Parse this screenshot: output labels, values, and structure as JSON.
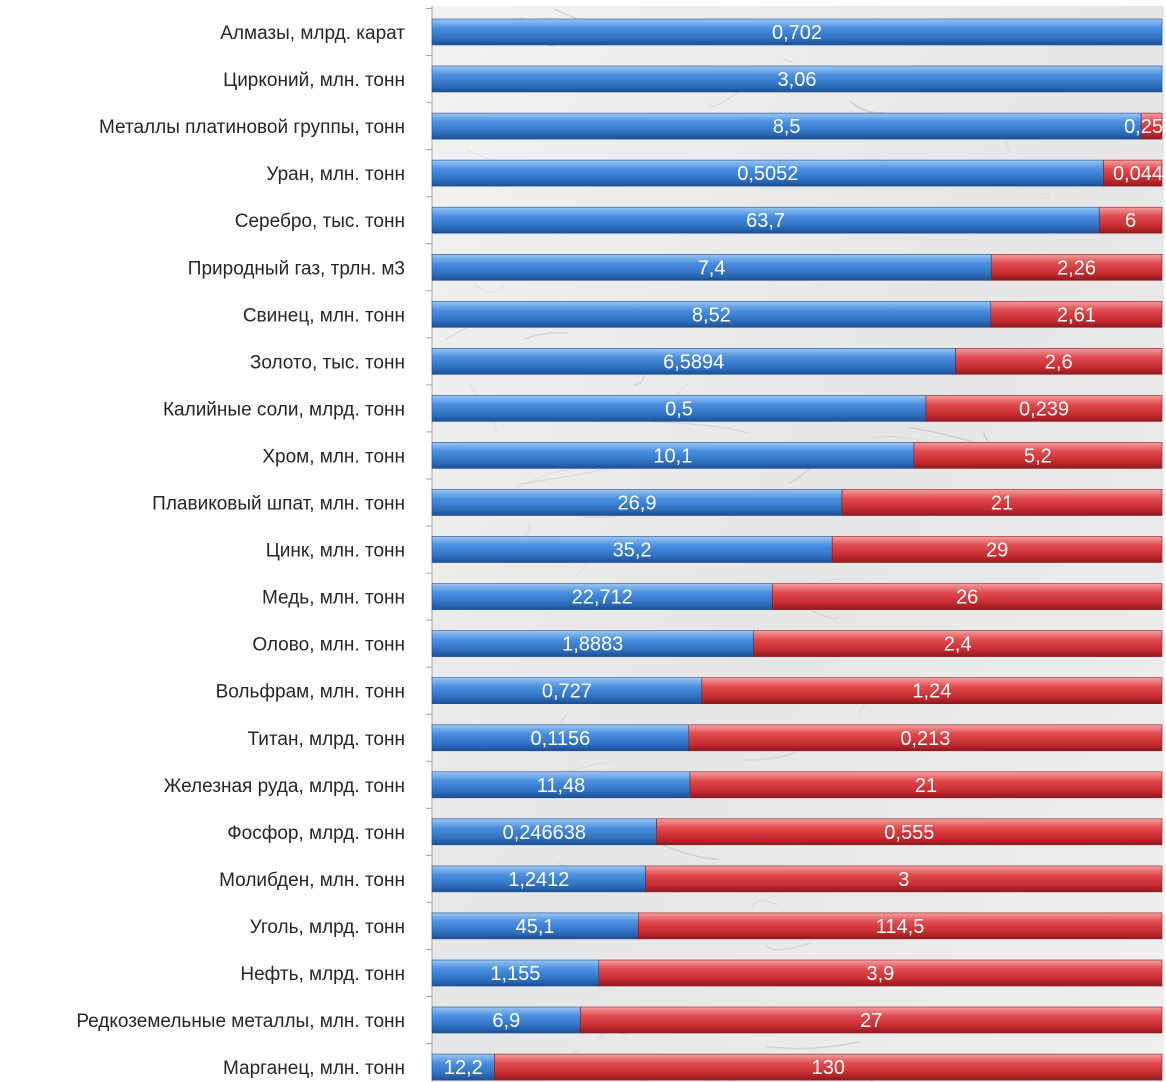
{
  "colors": {
    "series_1": "#3f82d4",
    "series_2": "#d8363a",
    "axis": "#a6a6a6",
    "label_text": "#262626",
    "bar_label_text": "#ffffff"
  },
  "chart_data": {
    "type": "bar",
    "orientation": "horizontal",
    "stacking": "percent",
    "grid": false,
    "legend": "none",
    "title": "",
    "xlabel": "",
    "ylabel": "",
    "categories": [
      "Алмазы, млрд. карат",
      "Цирконий, млн. тонн",
      "Металлы платиновой  группы,  тонн",
      "Уран, млн. тонн",
      "Серебро, тыс. тонн",
      "Природный газ, трлн. м3",
      "Свинец, млн. тонн",
      "Золото, тыс. тонн",
      "Калийные соли, млрд. тонн",
      "Хром, млн. тонн",
      "Плавиковый шпат, млн. тонн",
      "Цинк, млн. тонн",
      "Медь, млн. тонн",
      "Олово, млн. тонн",
      "Вольфрам, млн. тонн",
      "Титан, млрд. тонн",
      "Железная руда, млрд. тонн",
      "Фосфор, млрд. тонн",
      "Молибден, млн. тонн",
      "Уголь, млрд. тонн",
      "Нефть, млрд. тонн",
      "Редкоземельные металлы, млн. тонн",
      "Марганец, млн. тонн"
    ],
    "series": [
      {
        "values": [
          0.702,
          3.06,
          8.5,
          0.5052,
          63.7,
          7.4,
          8.52,
          6.5894,
          0.5,
          10.1,
          26.9,
          35.2,
          22.712,
          1.8883,
          0.727,
          0.1156,
          11.48,
          0.246638,
          1.2412,
          45.1,
          1.155,
          6.9,
          12.2
        ],
        "labels": [
          "0,702",
          "3,06",
          "8,5",
          "0,5052",
          "63,7",
          "7,4",
          "8,52",
          "6,5894",
          "0,5",
          "10,1",
          "26,9",
          "35,2",
          "22,712",
          "1,8883",
          "0,727",
          "0,1156",
          "11,48",
          "0,246638",
          "1,2412",
          "45,1",
          "1,155",
          "6,9",
          "12,2"
        ]
      },
      {
        "values": [
          0,
          0,
          0.25,
          0.044,
          6,
          2.26,
          2.61,
          2.6,
          0.239,
          5.2,
          21,
          29,
          26,
          2.4,
          1.24,
          0.213,
          21,
          0.555,
          3,
          114.5,
          3.9,
          27,
          130
        ],
        "labels": [
          "",
          "",
          "0,25",
          "0,044",
          "6",
          "2,26",
          "2,61",
          "2,6",
          "0,239",
          "5,2",
          "21",
          "29",
          "26",
          "2,4",
          "1,24",
          "0,213",
          "21",
          "0,555",
          "3",
          "114,5",
          "3,9",
          "27",
          "130"
        ]
      }
    ]
  }
}
